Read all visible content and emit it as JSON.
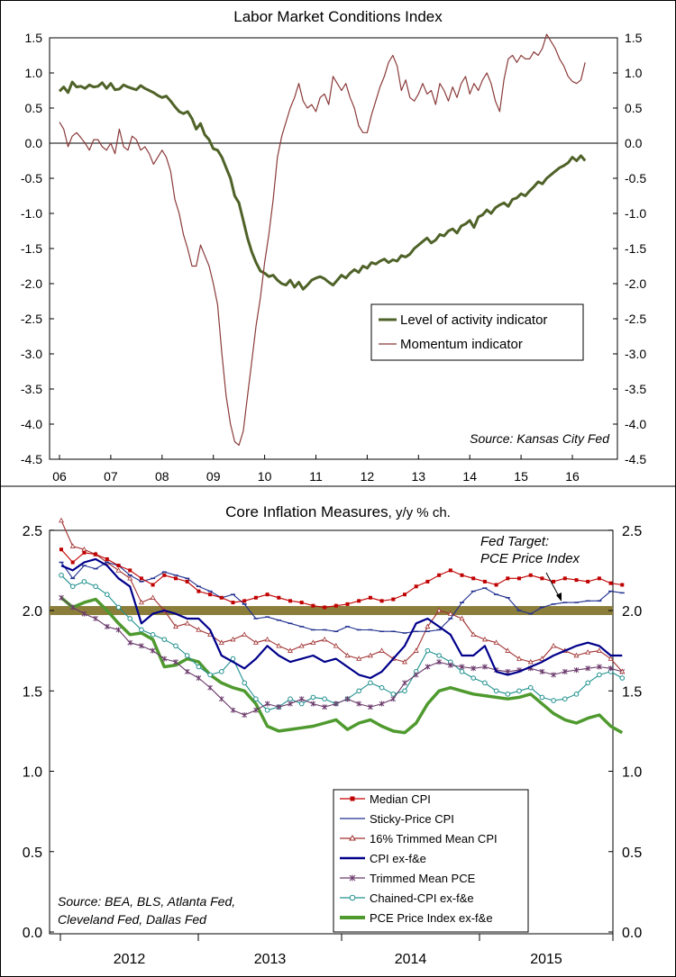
{
  "chart_data": [
    {
      "type": "line",
      "title": "Labor Market Conditions Index",
      "source": "Source: Kansas City Fed",
      "ylim": [
        -4.5,
        1.5
      ],
      "yticks": [
        "1.5",
        "1.0",
        "0.5",
        "0.0",
        "-0.5",
        "-1.0",
        "-1.5",
        "-2.0",
        "-2.5",
        "-3.0",
        "-3.5",
        "-4.0",
        "-4.5"
      ],
      "xticks": [
        "06",
        "07",
        "08",
        "09",
        "10",
        "11",
        "12",
        "13",
        "14",
        "15",
        "16"
      ],
      "legend_position": "right",
      "grid": false,
      "series": [
        {
          "name": "Level of activity indicator",
          "color": "#4f6228",
          "x_start": 2006.0,
          "step": 0.0833333,
          "values": [
            0.74,
            0.8,
            0.72,
            0.87,
            0.8,
            0.81,
            0.78,
            0.83,
            0.8,
            0.81,
            0.86,
            0.78,
            0.85,
            0.76,
            0.77,
            0.83,
            0.8,
            0.78,
            0.76,
            0.82,
            0.78,
            0.75,
            0.72,
            0.68,
            0.65,
            0.67,
            0.6,
            0.52,
            0.45,
            0.42,
            0.45,
            0.35,
            0.2,
            0.28,
            0.12,
            0.05,
            -0.08,
            -0.1,
            -0.2,
            -0.35,
            -0.5,
            -0.75,
            -0.85,
            -1.1,
            -1.35,
            -1.55,
            -1.7,
            -1.82,
            -1.85,
            -1.9,
            -1.88,
            -1.95,
            -2.0,
            -2.02,
            -1.95,
            -2.05,
            -1.98,
            -2.08,
            -2.02,
            -1.95,
            -1.92,
            -1.9,
            -1.93,
            -1.98,
            -2.02,
            -1.95,
            -1.88,
            -1.92,
            -1.85,
            -1.8,
            -1.84,
            -1.75,
            -1.78,
            -1.7,
            -1.72,
            -1.68,
            -1.65,
            -1.7,
            -1.66,
            -1.68,
            -1.6,
            -1.62,
            -1.58,
            -1.5,
            -1.45,
            -1.4,
            -1.35,
            -1.42,
            -1.38,
            -1.3,
            -1.32,
            -1.25,
            -1.22,
            -1.28,
            -1.18,
            -1.15,
            -1.1,
            -1.2,
            -1.05,
            -1.02,
            -0.95,
            -1.0,
            -0.92,
            -0.88,
            -0.85,
            -0.9,
            -0.8,
            -0.78,
            -0.72,
            -0.75,
            -0.68,
            -0.62,
            -0.55,
            -0.58,
            -0.5,
            -0.45,
            -0.4,
            -0.35,
            -0.32,
            -0.28,
            -0.2,
            -0.25,
            -0.18,
            -0.25
          ]
        },
        {
          "name": "Momentum indicator",
          "color": "#8b3a3a",
          "x_start": 2006.0,
          "step": 0.0833333,
          "values": [
            0.3,
            0.2,
            -0.05,
            0.1,
            0.15,
            0.08,
            0.0,
            -0.1,
            0.05,
            0.05,
            -0.05,
            -0.1,
            0.0,
            -0.15,
            0.2,
            -0.05,
            -0.1,
            0.1,
            0.05,
            -0.1,
            -0.05,
            -0.15,
            -0.3,
            -0.2,
            -0.1,
            -0.2,
            -0.4,
            -0.8,
            -1.0,
            -1.3,
            -1.5,
            -1.75,
            -1.75,
            -1.45,
            -1.6,
            -1.75,
            -2.0,
            -2.3,
            -3.0,
            -3.6,
            -4.0,
            -4.25,
            -4.3,
            -4.1,
            -3.6,
            -3.1,
            -2.6,
            -2.2,
            -1.7,
            -1.3,
            -0.8,
            -0.2,
            0.1,
            0.3,
            0.5,
            0.65,
            0.85,
            0.6,
            0.5,
            0.55,
            0.45,
            0.65,
            0.7,
            0.55,
            0.95,
            0.85,
            0.75,
            0.85,
            0.65,
            0.5,
            0.25,
            0.15,
            0.15,
            0.4,
            0.6,
            0.8,
            0.95,
            1.15,
            1.25,
            1.1,
            0.75,
            0.9,
            0.65,
            0.6,
            0.7,
            0.85,
            0.7,
            0.75,
            0.55,
            0.85,
            0.75,
            0.6,
            0.8,
            0.65,
            0.85,
            0.95,
            0.7,
            0.85,
            0.75,
            0.9,
            1.0,
            0.85,
            0.6,
            0.45,
            0.9,
            1.2,
            1.25,
            1.15,
            1.25,
            1.2,
            1.2,
            1.3,
            1.25,
            1.35,
            1.55,
            1.45,
            1.35,
            1.2,
            1.1,
            0.95,
            0.88,
            0.85,
            0.9,
            1.15
          ]
        }
      ]
    },
    {
      "type": "line",
      "title": "Core Inflation Measures",
      "title_unit": ", y/y % ch.",
      "source": [
        "Source: BEA, BLS, Atlanta Fed,",
        "Cleveland Fed, Dallas Fed"
      ],
      "annotation": [
        "Fed Target:",
        "PCE Price Index"
      ],
      "fed_target": 2.0,
      "ylim": [
        0.0,
        2.5
      ],
      "yticks": [
        "2.5",
        "2.0",
        "1.5",
        "1.0",
        "0.5",
        "0.0"
      ],
      "xticks": [
        "2012",
        "2013",
        "2014",
        "2015"
      ],
      "legend_position": "bottom-right",
      "grid": false,
      "series": [
        {
          "name": "Median CPI",
          "color": "#c00000",
          "marker": "square",
          "values": [
            2.38,
            2.3,
            2.36,
            2.35,
            2.32,
            2.28,
            2.25,
            2.2,
            2.16,
            2.22,
            2.2,
            2.18,
            2.12,
            2.1,
            2.08,
            2.05,
            2.06,
            2.08,
            2.1,
            2.08,
            2.06,
            2.05,
            2.03,
            2.02,
            2.03,
            2.04,
            2.06,
            2.08,
            2.06,
            2.07,
            2.1,
            2.15,
            2.18,
            2.22,
            2.25,
            2.22,
            2.2,
            2.18,
            2.16,
            2.2,
            2.2,
            2.22,
            2.2,
            2.18,
            2.2,
            2.19,
            2.18,
            2.2,
            2.17,
            2.16
          ]
        },
        {
          "name": "Sticky-Price CPI",
          "color": "#1f2f8f",
          "marker": "dash",
          "values": [
            2.3,
            2.2,
            2.28,
            2.26,
            2.3,
            2.28,
            2.22,
            2.18,
            2.2,
            2.24,
            2.22,
            2.2,
            2.15,
            2.12,
            2.08,
            2.1,
            2.04,
            1.95,
            1.96,
            1.94,
            1.92,
            1.9,
            1.88,
            1.88,
            1.87,
            1.9,
            1.88,
            1.88,
            1.87,
            1.87,
            1.86,
            1.87,
            1.87,
            1.88,
            1.95,
            2.05,
            2.12,
            2.14,
            2.1,
            2.08,
            2.0,
            1.98,
            2.02,
            2.04,
            2.05,
            2.05,
            2.06,
            2.06,
            2.12,
            2.11
          ]
        },
        {
          "name": "16% Trimmed Mean CPI",
          "color": "#a03030",
          "marker": "triangle",
          "values": [
            2.56,
            2.4,
            2.38,
            2.35,
            2.3,
            2.25,
            2.2,
            2.05,
            2.08,
            2.0,
            1.9,
            1.92,
            1.88,
            1.85,
            1.8,
            1.82,
            1.85,
            1.8,
            1.82,
            1.78,
            1.75,
            1.78,
            1.8,
            1.82,
            1.78,
            1.72,
            1.7,
            1.72,
            1.75,
            1.7,
            1.68,
            1.75,
            1.9,
            2.0,
            1.98,
            1.95,
            1.85,
            1.82,
            1.8,
            1.75,
            1.7,
            1.68,
            1.7,
            1.78,
            1.75,
            1.72,
            1.74,
            1.75,
            1.7,
            1.62
          ]
        },
        {
          "name": "CPI ex-f&e",
          "color": "#00008b",
          "marker": "none",
          "values": [
            2.28,
            2.25,
            2.3,
            2.32,
            2.28,
            2.2,
            2.15,
            1.92,
            1.98,
            2.0,
            1.98,
            1.95,
            1.95,
            1.88,
            1.72,
            1.68,
            1.64,
            1.7,
            1.78,
            1.72,
            1.68,
            1.7,
            1.72,
            1.68,
            1.7,
            1.65,
            1.6,
            1.58,
            1.62,
            1.7,
            1.78,
            1.92,
            1.95,
            1.9,
            1.85,
            1.72,
            1.72,
            1.78,
            1.62,
            1.6,
            1.62,
            1.65,
            1.68,
            1.72,
            1.75,
            1.78,
            1.8,
            1.78,
            1.72,
            1.72
          ]
        },
        {
          "name": "Trimmed Mean PCE",
          "color": "#6b3a6b",
          "marker": "star",
          "values": [
            2.08,
            2.02,
            1.98,
            1.95,
            1.9,
            1.88,
            1.8,
            1.78,
            1.75,
            1.7,
            1.68,
            1.62,
            1.58,
            1.52,
            1.45,
            1.38,
            1.35,
            1.38,
            1.42,
            1.4,
            1.42,
            1.45,
            1.42,
            1.4,
            1.42,
            1.45,
            1.42,
            1.4,
            1.42,
            1.45,
            1.55,
            1.6,
            1.65,
            1.68,
            1.66,
            1.65,
            1.64,
            1.65,
            1.63,
            1.62,
            1.63,
            1.64,
            1.62,
            1.6,
            1.62,
            1.63,
            1.64,
            1.65,
            1.64,
            1.62
          ]
        },
        {
          "name": "Chained-CPI ex-f&e",
          "color": "#20908f",
          "marker": "circle",
          "values": [
            2.22,
            2.15,
            2.18,
            2.15,
            2.1,
            2.02,
            1.95,
            1.88,
            1.85,
            1.82,
            1.78,
            1.72,
            1.65,
            1.6,
            1.62,
            1.7,
            1.55,
            1.45,
            1.38,
            1.4,
            1.45,
            1.42,
            1.46,
            1.45,
            1.42,
            1.45,
            1.5,
            1.55,
            1.52,
            1.48,
            1.5,
            1.62,
            1.75,
            1.72,
            1.68,
            1.62,
            1.58,
            1.55,
            1.5,
            1.48,
            1.5,
            1.52,
            1.46,
            1.44,
            1.45,
            1.48,
            1.55,
            1.6,
            1.62,
            1.58
          ]
        },
        {
          "name": "PCE Price Index ex-f&e",
          "color": "#4f9a2f",
          "marker": "none",
          "values": [
            2.08,
            2.02,
            2.05,
            2.07,
            2.0,
            1.92,
            1.85,
            1.86,
            1.82,
            1.65,
            1.66,
            1.7,
            1.68,
            1.6,
            1.55,
            1.52,
            1.5,
            1.42,
            1.28,
            1.25,
            1.26,
            1.27,
            1.28,
            1.3,
            1.32,
            1.26,
            1.3,
            1.32,
            1.28,
            1.25,
            1.24,
            1.3,
            1.42,
            1.5,
            1.52,
            1.5,
            1.48,
            1.47,
            1.46,
            1.45,
            1.46,
            1.48,
            1.42,
            1.36,
            1.32,
            1.3,
            1.33,
            1.35,
            1.28,
            1.24
          ]
        }
      ]
    }
  ]
}
